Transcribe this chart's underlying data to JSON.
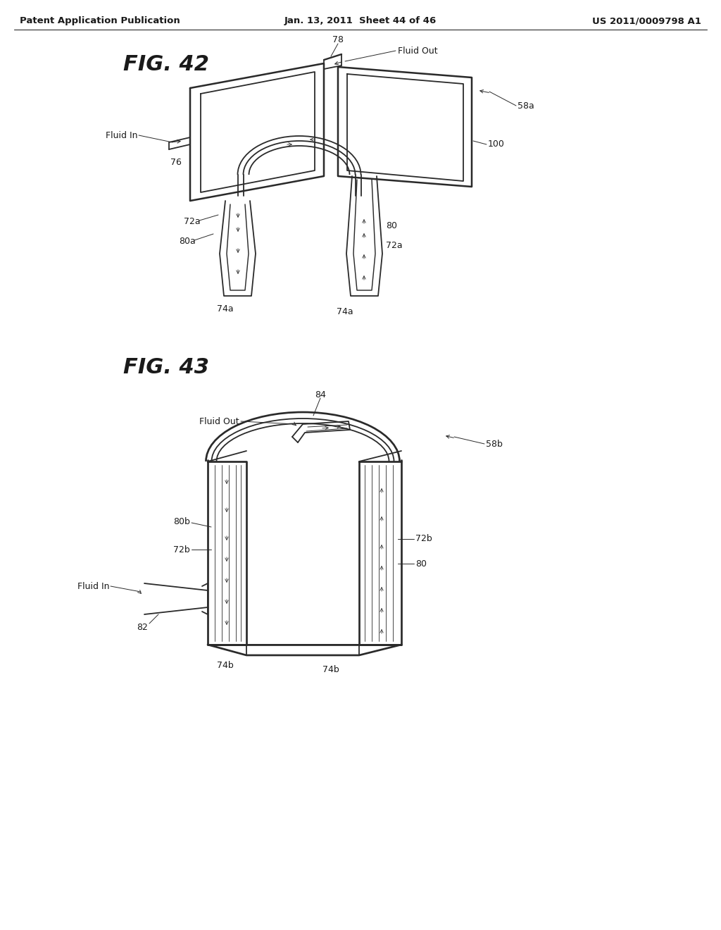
{
  "background_color": "#ffffff",
  "header_left": "Patent Application Publication",
  "header_center": "Jan. 13, 2011  Sheet 44 of 46",
  "header_right": "US 2011/0009798 A1",
  "line_color": "#2a2a2a",
  "line_width": 1.3,
  "label_fontsize": 9,
  "title_fontsize": 20,
  "header_fontsize": 9.5
}
